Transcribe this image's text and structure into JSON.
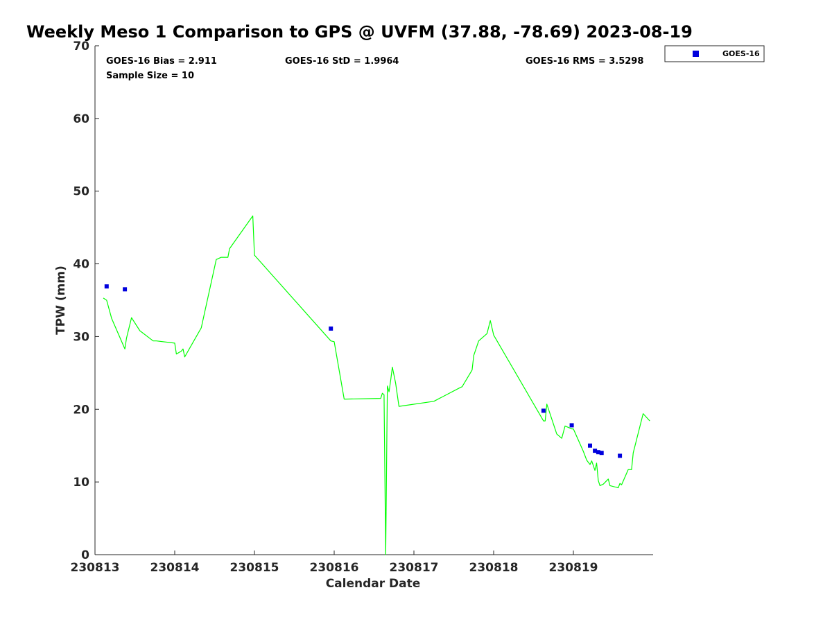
{
  "chart_data": {
    "type": "scatter",
    "title": "Weekly Meso 1 Comparison to GPS @ UVFM (37.88, -78.69) 2023-08-19",
    "xlabel": "Calendar Date",
    "ylabel": "TPW (mm)",
    "xlim": [
      "230813",
      "230820"
    ],
    "ylim": [
      0,
      70
    ],
    "x_ticks": [
      "230813",
      "230814",
      "230815",
      "230816",
      "230817",
      "230818",
      "230819"
    ],
    "y_ticks": [
      0,
      10,
      20,
      30,
      40,
      50,
      60,
      70
    ],
    "grid": false,
    "legend_position": "outside-top-right",
    "stats": {
      "bias": "GOES-16 Bias = 2.911",
      "std": "GOES-16 StD = 1.9964",
      "rms": "GOES-16 RMS = 3.5298",
      "sample": "Sample Size = 10"
    },
    "colors": {
      "goes": "#0000dd",
      "gps": "#00ff00"
    },
    "series": [
      {
        "name": "GOES-16",
        "kind": "markers",
        "x": [
          "2023-08-13 03:30",
          "2023-08-13 09:00",
          "2023-08-15 23:00",
          "2023-08-18 15:00",
          "2023-08-18 23:30",
          "2023-08-19 05:00",
          "2023-08-19 06:30",
          "2023-08-19 07:30",
          "2023-08-19 08:30",
          "2023-08-19 14:00"
        ],
        "y": [
          36.9,
          36.5,
          31.1,
          19.8,
          17.8,
          15.0,
          14.3,
          14.1,
          14.0,
          13.6
        ]
      },
      {
        "kind": "line",
        "x": [
          "2023-08-13 02:30",
          "2023-08-13 03:30",
          "2023-08-13 05:00",
          "2023-08-13 09:00",
          "2023-08-13 09:30",
          "2023-08-13 11:00",
          "2023-08-13 13:30",
          "2023-08-13 17:30",
          "2023-08-13 18:30",
          "2023-08-14 00:00",
          "2023-08-14 00:30",
          "2023-08-14 02:00",
          "2023-08-14 02:30",
          "2023-08-14 03:00",
          "2023-08-14 08:00",
          "2023-08-14 12:30",
          "2023-08-14 14:00",
          "2023-08-14 16:00",
          "2023-08-14 16:30",
          "2023-08-14 23:30",
          "2023-08-15 00:00",
          "2023-08-15 23:00",
          "2023-08-16 00:00",
          "2023-08-16 03:00",
          "2023-08-16 03:30",
          "2023-08-16 14:00",
          "2023-08-16 14:30",
          "2023-08-16 15:00",
          "2023-08-16 15:30",
          "2023-08-16 16:00",
          "2023-08-16 16:30",
          "2023-08-16 17:00",
          "2023-08-16 17:30",
          "2023-08-16 18:30",
          "2023-08-16 19:30",
          "2023-08-17 06:00",
          "2023-08-17 14:00",
          "2023-08-17 14:30",
          "2023-08-17 17:30",
          "2023-08-17 18:00",
          "2023-08-17 19:30",
          "2023-08-17 22:00",
          "2023-08-17 23:00",
          "2023-08-18 00:00",
          "2023-08-18 15:00",
          "2023-08-18 15:30",
          "2023-08-18 16:00",
          "2023-08-18 19:00",
          "2023-08-18 20:30",
          "2023-08-18 21:30",
          "2023-08-18 23:30",
          "2023-08-19 00:00",
          "2023-08-19 03:00",
          "2023-08-19 04:00",
          "2023-08-19 05:00",
          "2023-08-19 05:30",
          "2023-08-19 06:30",
          "2023-08-19 07:00",
          "2023-08-19 07:30",
          "2023-08-19 08:00",
          "2023-08-19 09:00",
          "2023-08-19 10:30",
          "2023-08-19 11:00",
          "2023-08-19 13:30",
          "2023-08-19 14:00",
          "2023-08-19 14:30",
          "2023-08-19 16:30",
          "2023-08-19 17:30",
          "2023-08-19 18:00",
          "2023-08-19 21:00",
          "2023-08-19 23:00"
        ],
        "y": [
          35.3,
          35.0,
          32.5,
          28.3,
          29.8,
          32.6,
          30.8,
          29.4,
          29.4,
          29.1,
          27.6,
          28.0,
          28.3,
          27.2,
          31.2,
          40.6,
          40.9,
          40.9,
          42.1,
          46.6,
          41.2,
          29.4,
          29.3,
          21.4,
          21.4,
          21.5,
          22.2,
          22.0,
          0,
          23.2,
          22.4,
          24.0,
          25.8,
          23.6,
          20.4,
          21.1,
          23.0,
          23.1,
          25.4,
          27.4,
          29.4,
          30.4,
          32.2,
          30.2,
          18.4,
          18.4,
          20.7,
          16.6,
          16.0,
          17.7,
          17.3,
          17.3,
          14.2,
          13.0,
          12.4,
          12.9,
          11.6,
          12.6,
          10.2,
          9.5,
          9.7,
          10.4,
          9.5,
          9.2,
          9.8,
          9.6,
          11.7,
          11.7,
          14.0,
          19.4,
          18.4
        ]
      }
    ]
  }
}
